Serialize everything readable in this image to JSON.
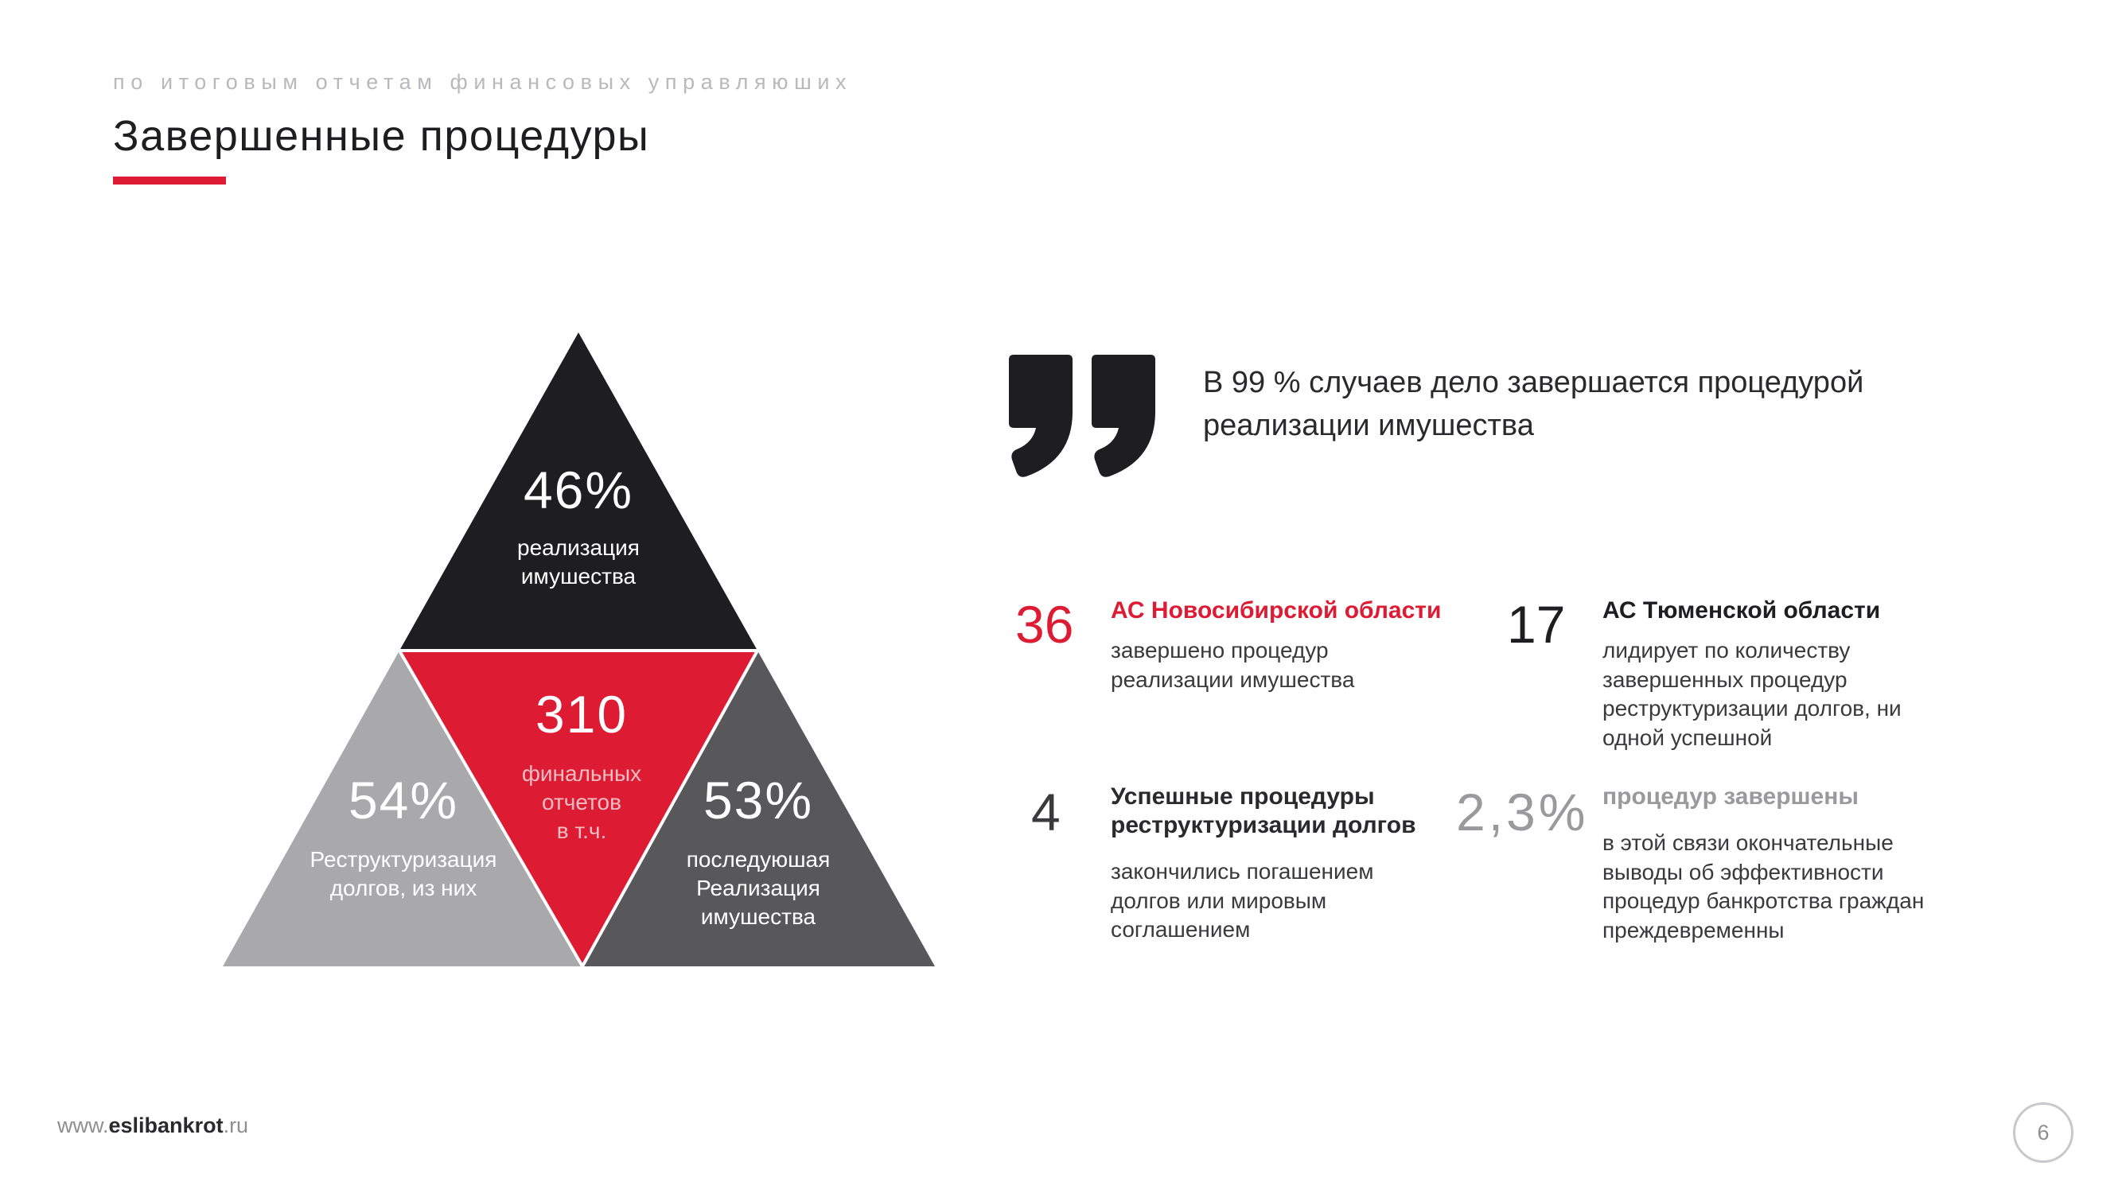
{
  "header": {
    "subtitle": "по итоговым отчетам финансовых управляюших",
    "title": "Завершенные процедуры"
  },
  "pyramid": {
    "top": {
      "value": "46%",
      "line1": "реализация",
      "line2": "имушества"
    },
    "center": {
      "value": "310",
      "line1": "финальных",
      "line2": "отчетов",
      "line3": "в т.ч."
    },
    "left": {
      "value": "54%",
      "line1": "Реструктуризация",
      "line2": "долгов, из них"
    },
    "right": {
      "value": "53%",
      "line1": "последуюшая",
      "line2": "Реализация",
      "line3": "имушества"
    }
  },
  "quote": {
    "text": "В 99 % случаев дело завершается процедурой реализации имушества"
  },
  "stats": [
    {
      "number": "36",
      "heading": "АС Новосибирской области",
      "description": "завершено процедур реализации имушества"
    },
    {
      "number": "17",
      "heading": "АС Тюменской области",
      "description": "лидирует по количеству завершенных процедур реструктуризации долгов, ни одной успешной"
    },
    {
      "number": "4",
      "heading": "Успешные процедуры реструктуризации долгов",
      "description": "закончились погашением долгов или мировым соглашением"
    },
    {
      "number": "2,3%",
      "heading": "процедур завершены",
      "description": "в этой связи окончательные выводы об эффективности процедур банкротства граждан преждевременны"
    }
  ],
  "footer": {
    "url_prefix": "www.",
    "url_brand": "eslibankrot",
    "url_suffix": ".ru",
    "page_number": "6"
  },
  "colors": {
    "accent_red": "#dd1c34",
    "dark": "#1e1e20",
    "light_gray": "#a9a9ab",
    "mid_gray": "#58585b",
    "muted_gray": "#9a9a9e"
  }
}
